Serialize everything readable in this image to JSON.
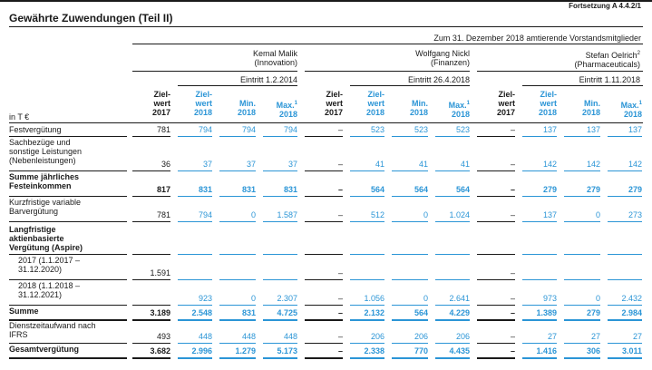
{
  "header": {
    "fortsetzung": "Fortsetzung A 4.4.2/1",
    "title": "Gewährte Zuwendungen (Teil II)",
    "reference": "Zum 31. Dezember 2018 amtierende Vorstandsmitglieder",
    "unit": "in T €"
  },
  "members": [
    {
      "name": "Kemal Malik",
      "dept": "(Innovation)",
      "eintritt": "Eintritt 1.2.2014"
    },
    {
      "name": "Wolfgang Nickl",
      "dept": "(Finanzen)",
      "eintritt": "Eintritt 26.4.2018"
    },
    {
      "name": "Stefan Oelrich",
      "name_sup": "2",
      "dept": "(Pharmaceuticals)",
      "eintritt": "Eintritt 1.11.2018"
    }
  ],
  "columns": [
    {
      "line1": "Ziel-",
      "line2": "wert",
      "line3": "2017",
      "sup": ""
    },
    {
      "line1": "Ziel-",
      "line2": "wert",
      "line3": "2018",
      "sup": ""
    },
    {
      "line1": "",
      "line2": "Min.",
      "line3": "2018",
      "sup": ""
    },
    {
      "line1": "",
      "line2": "Max.",
      "line3": "2018",
      "sup": "1"
    }
  ],
  "rows": [
    {
      "label": [
        "Festvergütung"
      ],
      "bold": false,
      "values": [
        "781",
        "794",
        "794",
        "794",
        "–",
        "523",
        "523",
        "523",
        "–",
        "137",
        "137",
        "137"
      ]
    },
    {
      "label": [
        "Sachbezüge und",
        "sonstige Leistungen",
        "(Nebenleistungen)"
      ],
      "bold": false,
      "values": [
        "36",
        "37",
        "37",
        "37",
        "–",
        "41",
        "41",
        "41",
        "–",
        "142",
        "142",
        "142"
      ]
    },
    {
      "label": [
        "Summe jährliches",
        "Festeinkommen"
      ],
      "bold": true,
      "values": [
        "817",
        "831",
        "831",
        "831",
        "–",
        "564",
        "564",
        "564",
        "–",
        "279",
        "279",
        "279"
      ]
    },
    {
      "label": [
        "Kurzfristige variable",
        "Barvergütung"
      ],
      "bold": false,
      "values": [
        "781",
        "794",
        "0",
        "1.587",
        "–",
        "512",
        "0",
        "1.024",
        "–",
        "137",
        "0",
        "273"
      ]
    },
    {
      "label": [
        "Langfristige",
        "aktienbasierte",
        "Vergütung (Aspire)"
      ],
      "bold": true,
      "values": [
        "",
        "",
        "",
        "",
        "",
        "",
        "",
        "",
        "",
        "",
        "",
        ""
      ]
    },
    {
      "label": [
        "2017 (1.1.2017 –",
        "31.12.2020)"
      ],
      "bold": false,
      "indent": true,
      "values": [
        "1.591",
        "",
        "",
        "",
        "–",
        "",
        "",
        "",
        "–",
        "",
        "",
        ""
      ]
    },
    {
      "label": [
        "2018 (1.1.2018 –",
        "31.12.2021)"
      ],
      "bold": false,
      "indent": true,
      "values": [
        "",
        "923",
        "0",
        "2.307",
        "–",
        "1.056",
        "0",
        "2.641",
        "–",
        "973",
        "0",
        "2.432"
      ]
    },
    {
      "label": [
        "Summe"
      ],
      "bold": true,
      "values": [
        "3.189",
        "2.548",
        "831",
        "4.725",
        "–",
        "2.132",
        "564",
        "4.229",
        "–",
        "1.389",
        "279",
        "2.984"
      ]
    },
    {
      "label": [
        "Dienstzeitaufwand nach",
        "IFRS"
      ],
      "bold": false,
      "values": [
        "493",
        "448",
        "448",
        "448",
        "–",
        "206",
        "206",
        "206",
        "–",
        "27",
        "27",
        "27"
      ]
    },
    {
      "label": [
        "Gesamtvergütung"
      ],
      "bold": true,
      "values": [
        "3.682",
        "2.996",
        "1.279",
        "5.173",
        "–",
        "2.338",
        "770",
        "4.435",
        "–",
        "1.416",
        "306",
        "3.011"
      ]
    }
  ],
  "colors": {
    "accent": "#2b95d6",
    "text": "#1a1a1a"
  }
}
